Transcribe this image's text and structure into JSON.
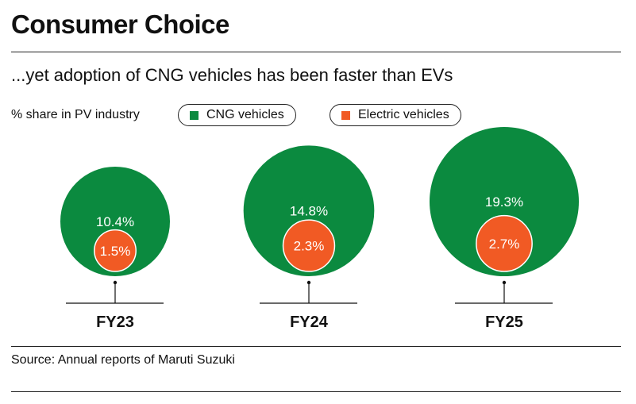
{
  "title": "Consumer Choice",
  "subtitle": "...yet adoption of CNG vehicles has been faster than EVs",
  "source": "Source: Annual reports of Maruti Suzuki",
  "chart_data": {
    "type": "bubble",
    "ylabel": "% share in PV industry",
    "categories": [
      "FY23",
      "FY24",
      "FY25"
    ],
    "series": [
      {
        "name": "CNG vehicles",
        "color": "#0b8a3f",
        "values": [
          10.4,
          14.8,
          19.3
        ],
        "labels": [
          "10.4%",
          "14.8%",
          "19.3%"
        ]
      },
      {
        "name": "Electric vehicles",
        "color": "#f15a24",
        "values": [
          1.5,
          2.3,
          2.7
        ],
        "labels": [
          "1.5%",
          "2.3%",
          "2.7%"
        ]
      }
    ],
    "legend": "top"
  }
}
